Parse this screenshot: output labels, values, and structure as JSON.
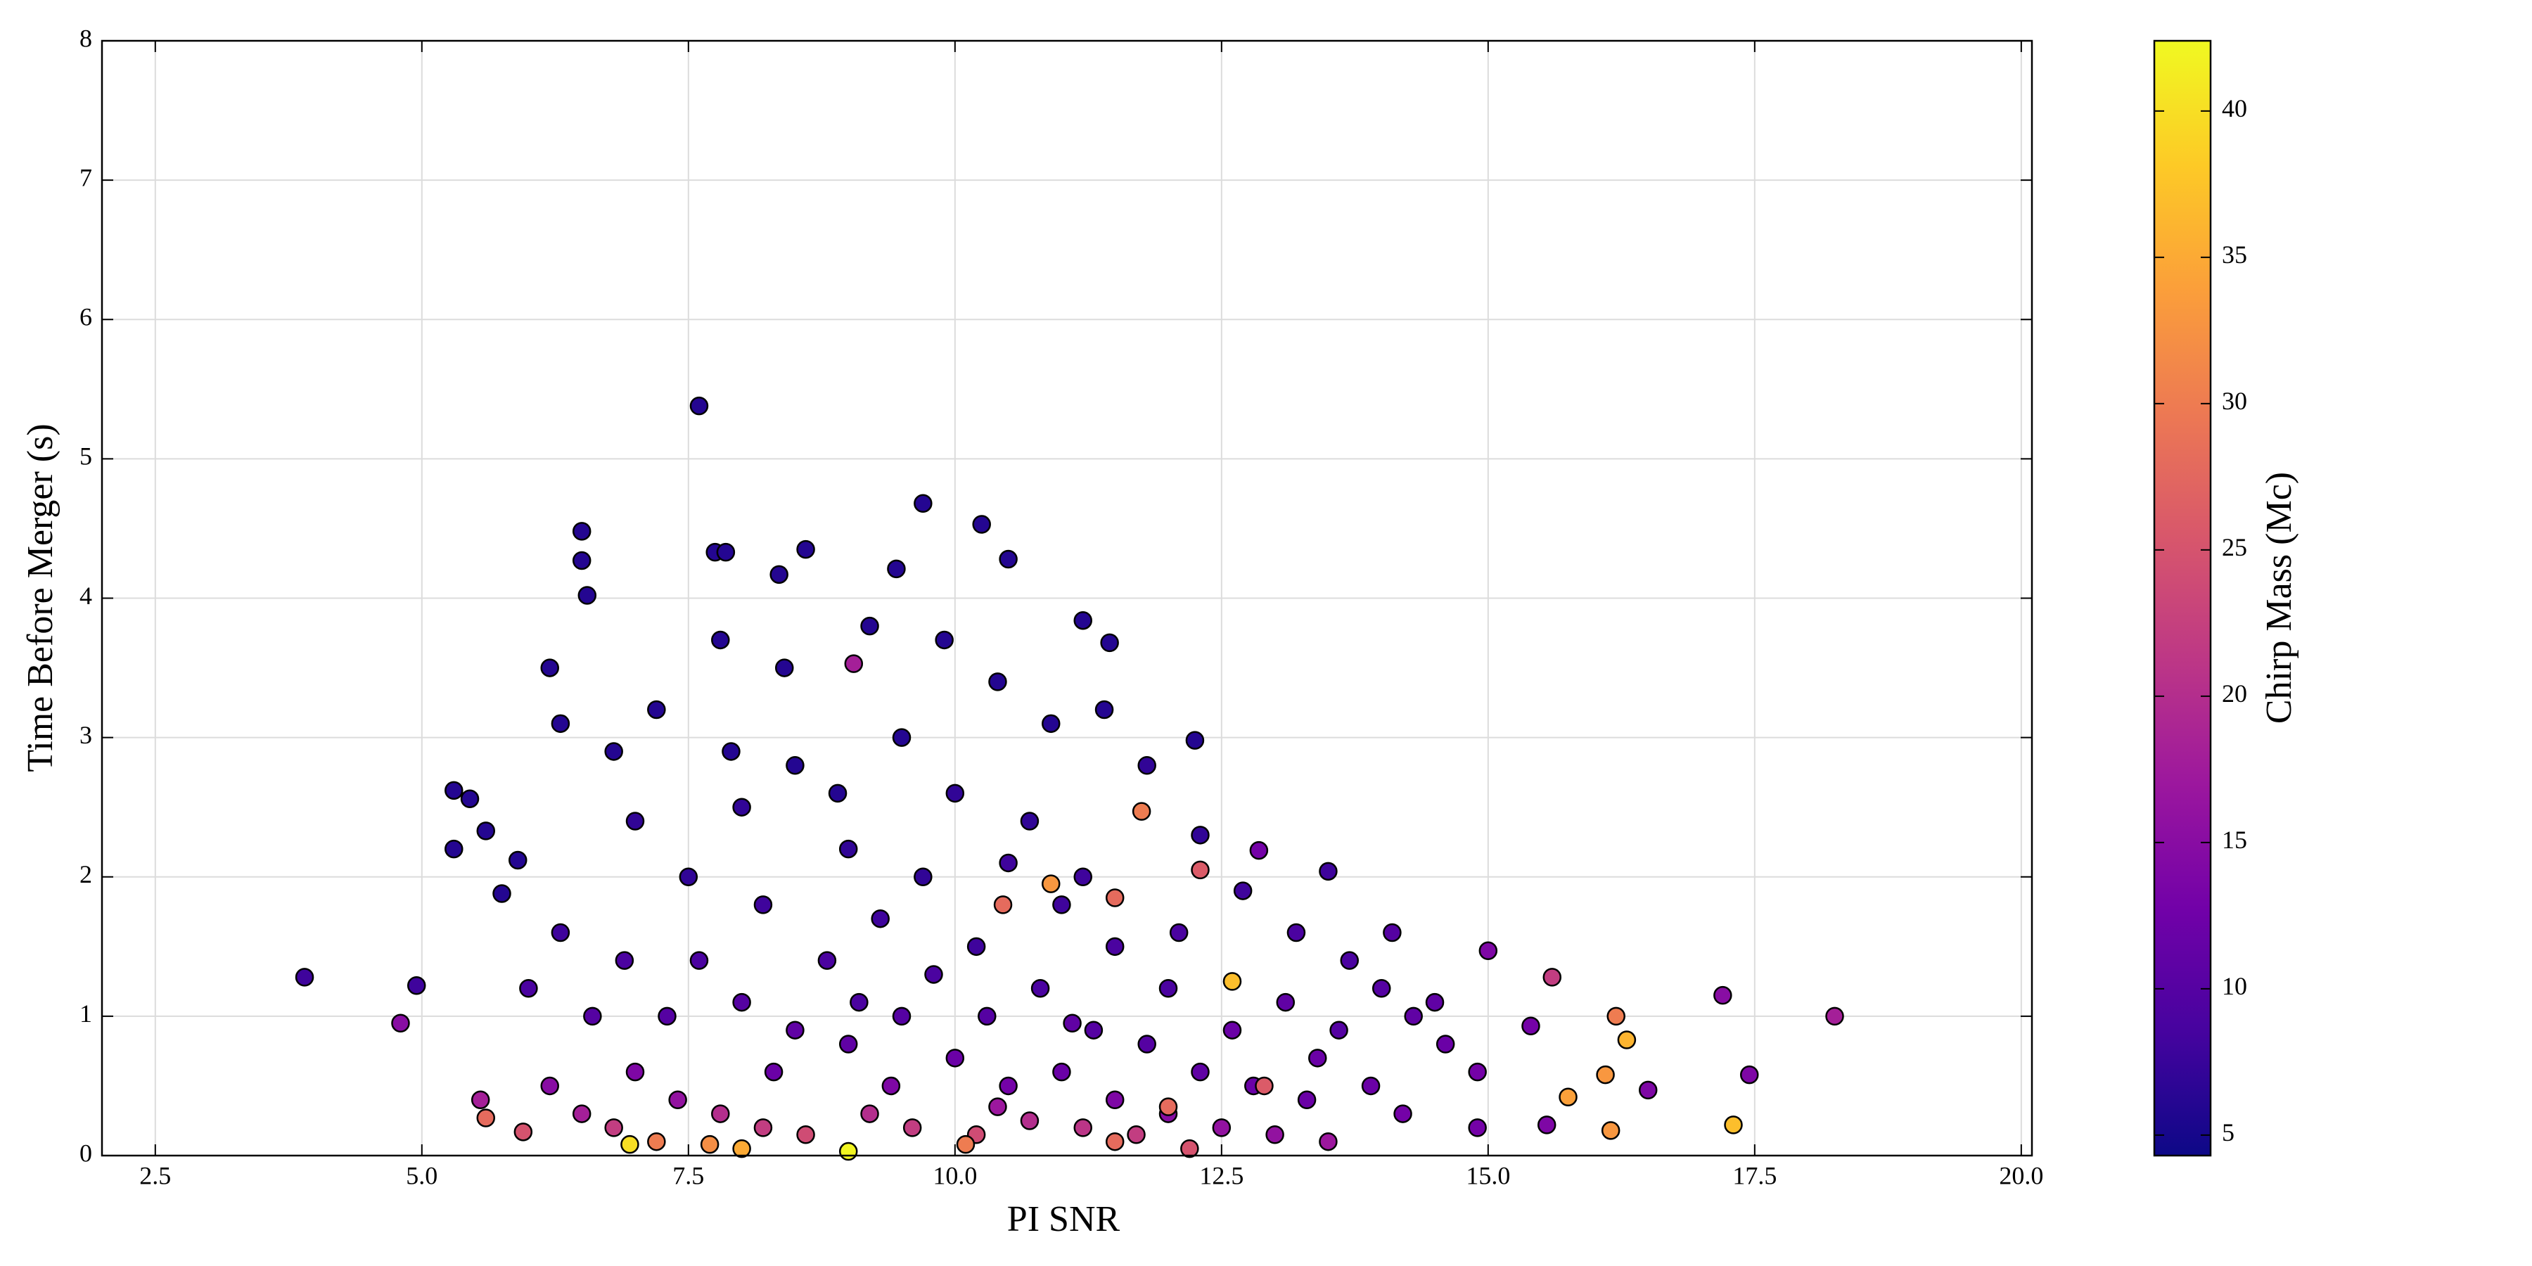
{
  "chart_data": {
    "type": "scatter",
    "x_label": "PI SNR",
    "y_label": "Time Before Merger (s)",
    "xlim": [
      2.0,
      20.1
    ],
    "ylim": [
      0,
      8
    ],
    "xticks": [
      2.5,
      {
        "value": 5,
        "label": "5.0"
      },
      7.5,
      {
        "value": 10,
        "label": "10.0"
      },
      12.5,
      {
        "value": 15,
        "label": "15.0"
      },
      17.5,
      {
        "value": 20,
        "label": "20.0"
      }
    ],
    "yticks": [
      0,
      1,
      2,
      3,
      4,
      5,
      6,
      7,
      8
    ],
    "grid": true,
    "colorbar": {
      "label": "Chirp Mass (Mc)",
      "lim": [
        4.3,
        42.4
      ],
      "ticks": [
        5,
        10,
        15,
        20,
        25,
        30,
        35,
        40
      ],
      "colormap": "plasma"
    },
    "x": [
      3.9,
      4.8,
      4.95,
      7.6,
      9.7,
      10.25,
      18.25,
      17.3,
      17.2,
      17.45,
      16.3,
      16.2,
      16.1,
      16.15,
      15.55,
      15.6,
      15.0,
      15.4,
      15.75,
      16.5,
      14.9,
      6.5,
      6.5,
      6.55,
      7.75,
      7.85,
      8.6,
      8.35,
      9.45,
      10.5,
      11.2,
      11.45,
      12.25,
      13.5,
      12.85,
      5.3,
      5.45,
      5.3,
      5.6,
      5.75,
      5.9,
      5.55,
      5.6,
      5.95,
      6.95,
      9,
      12.6,
      11.75,
      10.45,
      10.9,
      9.05,
      8.0,
      8.5,
      9.0,
      9.5,
      10.0,
      10.5,
      11.0,
      11.5,
      12.0,
      8.2,
      8.8,
      9.3,
      9.8,
      10.3,
      10.8,
      11.3,
      11.8,
      12.3,
      12.8,
      13.3,
      7.5,
      7.0,
      6.8,
      6.3,
      6.2,
      7.2,
      7.8,
      8.4,
      9.2,
      9.9,
      10.4,
      10.9,
      11.4,
      11.8,
      12.3,
      12.7,
      13.2,
      13.7,
      14.0,
      14.3,
      14.6,
      14.9,
      14.1,
      14.5,
      13.6,
      13.9,
      14.2,
      6.0,
      6.3,
      6.6,
      6.9,
      7.3,
      7.6,
      8.0,
      8.5,
      9.0,
      9.5,
      10.0,
      10.5,
      11.0,
      11.5,
      12.0,
      12.5,
      13.0,
      13.5,
      7.0,
      7.4,
      7.8,
      8.2,
      8.6,
      9.2,
      9.6,
      10.2,
      10.7,
      11.2,
      11.7,
      12.2,
      6.2,
      6.5,
      6.8,
      7.2,
      7.7,
      8.0,
      10.1,
      11.5,
      12.0,
      12.9,
      11.5,
      12.3,
      7.9,
      8.9,
      9.7,
      10.2,
      10.7,
      11.2,
      12.1,
      9.1,
      8.3,
      9.4,
      10.4,
      11.1,
      12.6,
      13.1,
      13.4
    ],
    "values": [
      1.28,
      0.95,
      1.22,
      5.38,
      4.68,
      4.53,
      1.0,
      0.22,
      1.15,
      0.58,
      0.83,
      1.0,
      0.58,
      0.18,
      0.22,
      1.28,
      1.47,
      0.93,
      0.42,
      0.47,
      0.2,
      4.48,
      4.27,
      4.02,
      4.33,
      4.33,
      4.35,
      4.17,
      4.21,
      4.28,
      3.84,
      3.68,
      2.98,
      2.04,
      2.19,
      2.62,
      2.56,
      2.2,
      2.33,
      1.88,
      2.12,
      0.4,
      0.27,
      0.17,
      0.08,
      0.03,
      1.25,
      2.47,
      1.8,
      1.95,
      3.53,
      2.5,
      2.8,
      2.2,
      3.0,
      2.6,
      2.1,
      1.8,
      1.5,
      1.2,
      1.8,
      1.4,
      1.7,
      1.3,
      1.0,
      1.2,
      0.9,
      0.8,
      0.6,
      0.5,
      0.4,
      2.0,
      2.4,
      2.9,
      3.1,
      3.5,
      3.2,
      3.7,
      3.5,
      3.8,
      3.7,
      3.4,
      3.1,
      3.2,
      2.8,
      2.3,
      1.9,
      1.6,
      1.4,
      1.2,
      1.0,
      0.8,
      0.6,
      1.6,
      1.1,
      0.9,
      0.5,
      0.3,
      1.2,
      1.6,
      1.0,
      1.4,
      1.0,
      1.4,
      1.1,
      0.9,
      0.8,
      1.0,
      0.7,
      0.5,
      0.6,
      0.4,
      0.3,
      0.2,
      0.15,
      0.1,
      0.6,
      0.4,
      0.3,
      0.2,
      0.15,
      0.3,
      0.2,
      0.15,
      0.25,
      0.2,
      0.15,
      0.05,
      0.5,
      0.3,
      0.2,
      0.1,
      0.08,
      0.05,
      0.08,
      0.1,
      0.35,
      0.5,
      1.85,
      2.05,
      2.9,
      2.6,
      2.0,
      1.5,
      2.4,
      2.0,
      1.6,
      1.1,
      0.6,
      0.5,
      0.35,
      0.95,
      0.9,
      1.1,
      0.7
    ],
    "c": [
      8,
      15,
      8,
      6,
      6,
      6,
      18,
      37,
      15,
      14,
      36,
      30,
      33,
      33,
      14,
      22,
      14,
      13,
      34,
      14,
      13,
      6,
      6,
      6,
      6,
      6,
      6,
      6,
      6,
      6,
      6,
      6,
      6,
      8,
      13,
      6,
      6,
      6,
      6,
      6,
      6,
      18,
      28,
      25,
      40,
      42,
      37,
      30,
      28,
      33,
      18,
      7,
      6,
      7,
      6,
      7,
      8,
      8,
      9,
      9,
      8,
      9,
      8,
      9,
      10,
      9,
      10,
      10,
      11,
      12,
      12,
      7,
      7,
      6,
      6,
      6,
      6,
      6,
      6,
      6,
      6,
      6,
      6,
      6,
      7,
      7,
      8,
      9,
      9,
      10,
      11,
      12,
      13,
      10,
      11,
      10,
      12,
      13,
      9,
      8,
      10,
      9,
      10,
      9,
      10,
      11,
      11,
      10,
      12,
      13,
      12,
      14,
      15,
      16,
      16,
      17,
      14,
      16,
      20,
      22,
      24,
      20,
      22,
      24,
      20,
      21,
      22,
      25,
      15,
      18,
      22,
      30,
      32,
      35,
      30,
      28,
      28,
      26,
      28,
      26,
      6,
      6,
      7,
      8,
      7,
      8,
      9,
      9,
      12,
      14,
      17,
      11,
      12,
      11,
      12
    ]
  }
}
